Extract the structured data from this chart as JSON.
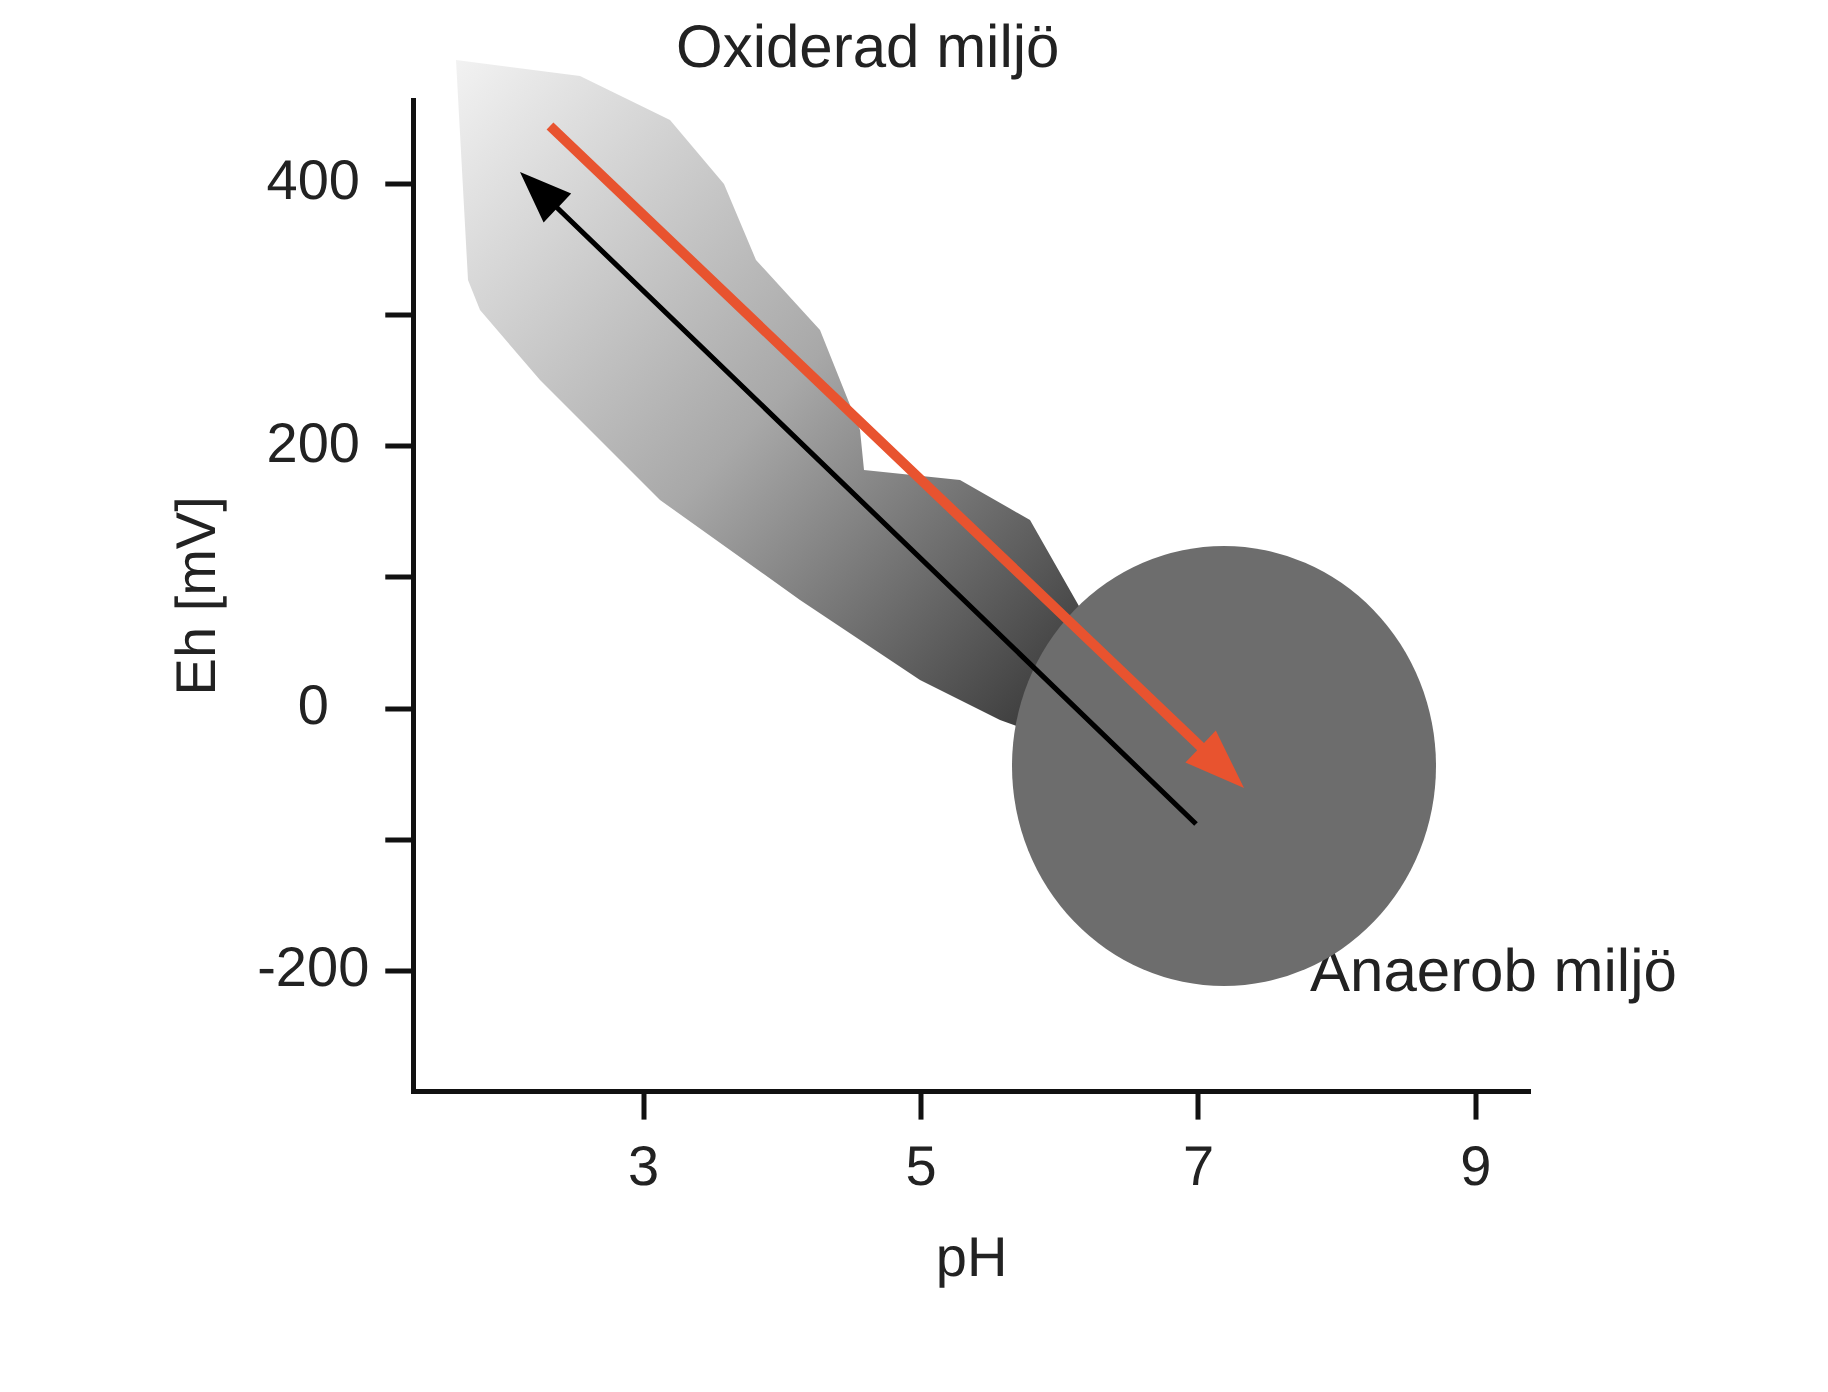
{
  "chart_data": {
    "type": "scatter",
    "xlabel": "pH",
    "ylabel": "Eh [mV]",
    "xlim": [
      1.34,
      9.39
    ],
    "xticks": [
      3,
      5,
      7,
      9
    ],
    "ylim": [
      -292,
      464
    ],
    "yticks": [
      {
        "value": -200,
        "label": "-200"
      },
      {
        "value": -100,
        "label": null
      },
      0,
      {
        "value": 100,
        "label": null
      },
      200,
      {
        "value": 300,
        "label": null
      },
      400
    ],
    "grid": false,
    "legend": false,
    "annotations": [
      "Oxiderad miljö",
      "Anaerob miljö"
    ]
  }
}
